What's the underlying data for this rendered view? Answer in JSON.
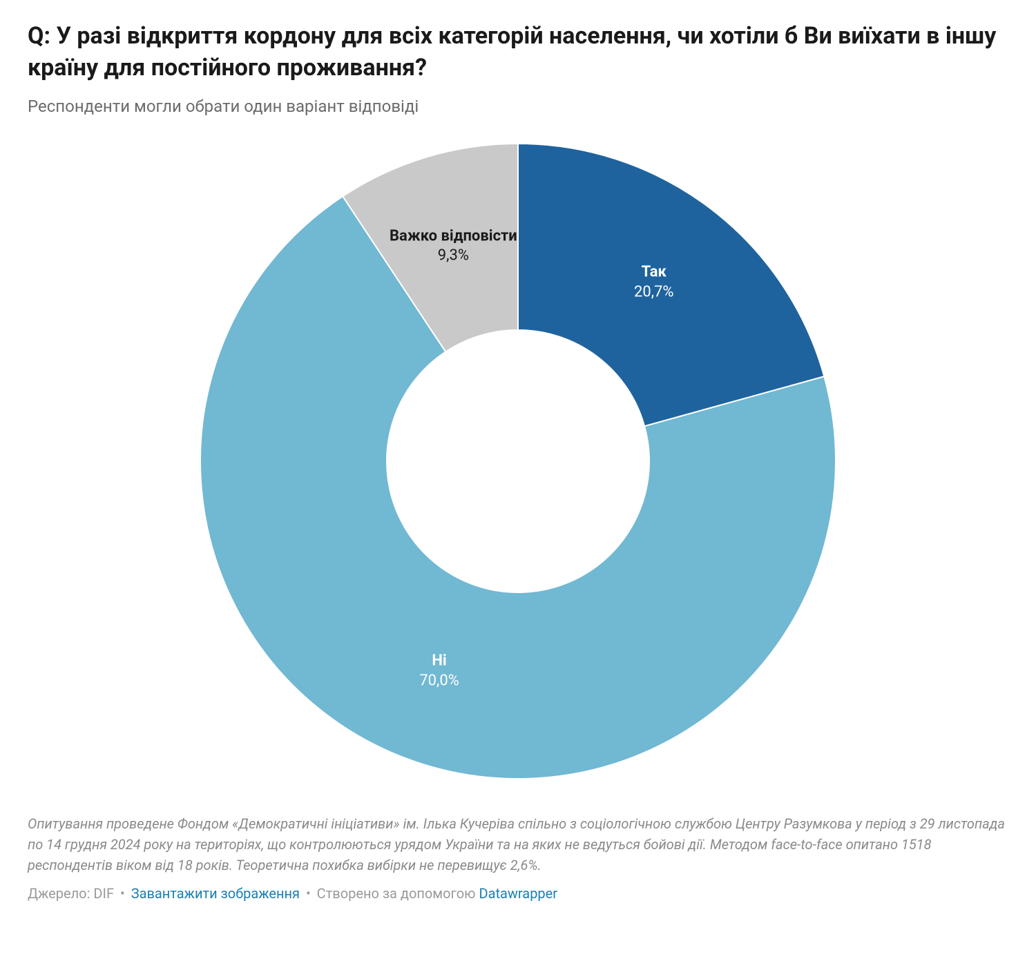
{
  "title": "Q: У разі відкриття кордону для всіх категорій населення, чи хотіли б Ви виїхати в іншу країну для постійного проживання?",
  "subtitle": "Респонденти могли обрати один варіант відповіді",
  "chart": {
    "type": "donut",
    "size": 920,
    "outer_radius": 460,
    "inner_radius": 190,
    "background_color": "#ffffff",
    "start_angle_deg": 0,
    "slices": [
      {
        "label": "Так",
        "value": 20.7,
        "pct_text": "20,7%",
        "color": "#1f639e",
        "label_color": "#ffffff",
        "label_fontsize": 22
      },
      {
        "label": "Ні",
        "value": 70.0,
        "pct_text": "70,0%",
        "color": "#71b8d2",
        "label_color": "#ffffff",
        "label_fontsize": 22
      },
      {
        "label": "Важко відповісти",
        "value": 9.3,
        "pct_text": "9,3%",
        "color": "#c9c9c9",
        "label_color": "#1a1a1a",
        "label_fontsize": 22
      }
    ]
  },
  "footnote": "Опитування проведене Фондом «Демократичні ініціативи» ім. Ілька Кучеріва спільно з соціологічною службою Центру Разумкова у період з 29 листопада по 14 грудня 2024 року на територіях, що контролюються урядом України та на яких не ведуться бойові дії. Методом face-to-face опитано 1518 респондентів віком від 18 років. Теоретична похибка вибірки не перевищує 2,6%.",
  "credits": {
    "source_prefix": "Джерело:",
    "source": "DIF",
    "download": "Завантажити зображення",
    "created_prefix": "Створено за допомогою",
    "tool": "Datawrapper"
  }
}
